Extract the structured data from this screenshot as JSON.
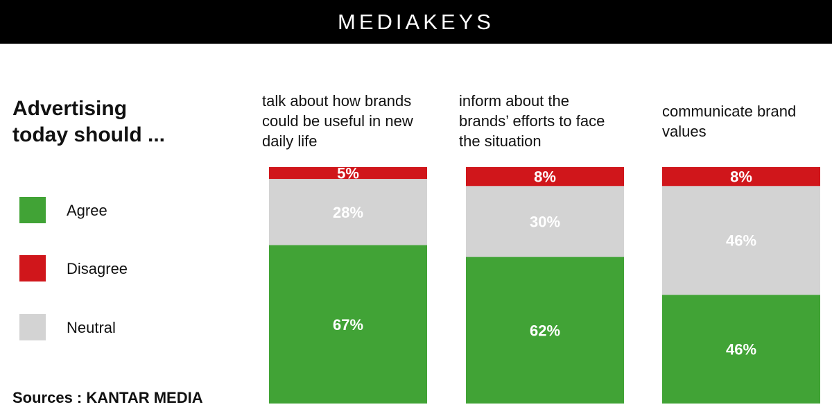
{
  "header": {
    "brand": "MEDIAKEYS"
  },
  "title": {
    "line1": "Advertising",
    "line2": "today should ..."
  },
  "legend": [
    {
      "label": "Agree",
      "color": "#41a336"
    },
    {
      "label": "Disagree",
      "color": "#d0161b"
    },
    {
      "label": "Neutral",
      "color": "#d3d3d3"
    }
  ],
  "source": "Sources : KANTAR MEDIA",
  "colors": {
    "agree": "#41a336",
    "disagree": "#d0161b",
    "neutral": "#d3d3d3",
    "header": "#000000"
  },
  "chart_data": {
    "type": "bar",
    "stacked": true,
    "categories": [
      [
        "talk about how brands",
        "could be useful in new",
        "daily life"
      ],
      [
        "inform about the",
        "brands’ efforts to face",
        "the situation"
      ],
      [
        "communicate brand",
        "values"
      ]
    ],
    "series": [
      {
        "name": "Agree",
        "values": [
          67,
          62,
          46
        ],
        "labels": [
          "67%",
          "62%",
          "46%"
        ]
      },
      {
        "name": "Neutral",
        "values": [
          28,
          30,
          46
        ],
        "labels": [
          "28%",
          "30%",
          "46%"
        ]
      },
      {
        "name": "Disagree",
        "values": [
          5,
          8,
          8
        ],
        "labels": [
          "5%",
          "8%",
          "8%"
        ]
      }
    ],
    "ylim": [
      0,
      100
    ],
    "grid": false,
    "legend_position": "left"
  }
}
